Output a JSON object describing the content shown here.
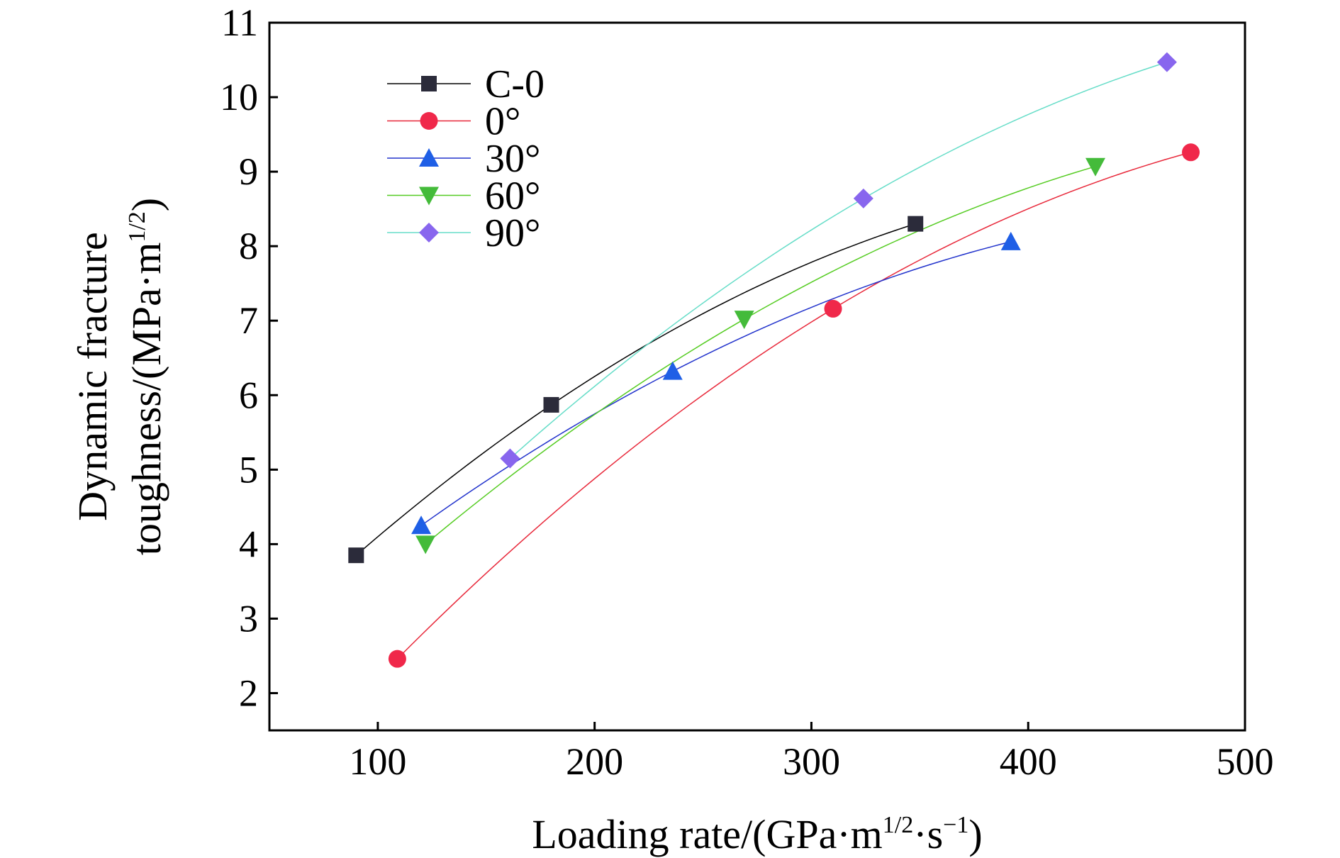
{
  "chart_data": {
    "type": "line",
    "xlabel_main": "Loading rate/(GPa·m",
    "xlabel_sup1": "1/2",
    "xlabel_mid": "·s",
    "xlabel_sup2": "−1",
    "xlabel_end": ")",
    "ylabel_line1": "Dynamic fracture",
    "ylabel_line2_main": "toughness/(MPa·m",
    "ylabel_line2_sup": "1/2",
    "ylabel_line2_end": ")",
    "xlim": [
      50,
      500
    ],
    "ylim": [
      1.5,
      11
    ],
    "x_ticks": [
      100,
      200,
      300,
      400,
      500
    ],
    "y_ticks": [
      2,
      3,
      4,
      5,
      6,
      7,
      8,
      9,
      10,
      11
    ],
    "x_tick_labels": [
      "100",
      "200",
      "300",
      "400",
      "500"
    ],
    "y_tick_labels": [
      "2",
      "3",
      "4",
      "5",
      "6",
      "7",
      "8",
      "9",
      "10",
      "11"
    ],
    "legend_position": "top-left",
    "grid": false,
    "series": [
      {
        "name": "C-0",
        "marker": "square",
        "color": "#2b2b3a",
        "line_color": "#000000",
        "x": [
          90,
          180,
          348
        ],
        "y": [
          3.85,
          5.87,
          8.3
        ]
      },
      {
        "name": "0°",
        "marker": "circle",
        "color": "#f0284a",
        "line_color": "#e8283a",
        "x": [
          109,
          310,
          475
        ],
        "y": [
          2.46,
          7.16,
          9.26
        ]
      },
      {
        "name": "30°",
        "marker": "triangle-up",
        "color": "#1f5fe6",
        "line_color": "#2233cc",
        "x": [
          120,
          236,
          392
        ],
        "y": [
          4.25,
          6.32,
          8.06
        ]
      },
      {
        "name": "60°",
        "marker": "triangle-down",
        "color": "#44bb3a",
        "line_color": "#55cc22",
        "x": [
          122,
          269,
          431
        ],
        "y": [
          4.0,
          7.02,
          9.07
        ]
      },
      {
        "name": "90°",
        "marker": "diamond",
        "color": "#8866ee",
        "line_color": "#66ddc8",
        "x": [
          161,
          324,
          464
        ],
        "y": [
          5.15,
          8.64,
          10.47
        ]
      }
    ]
  }
}
